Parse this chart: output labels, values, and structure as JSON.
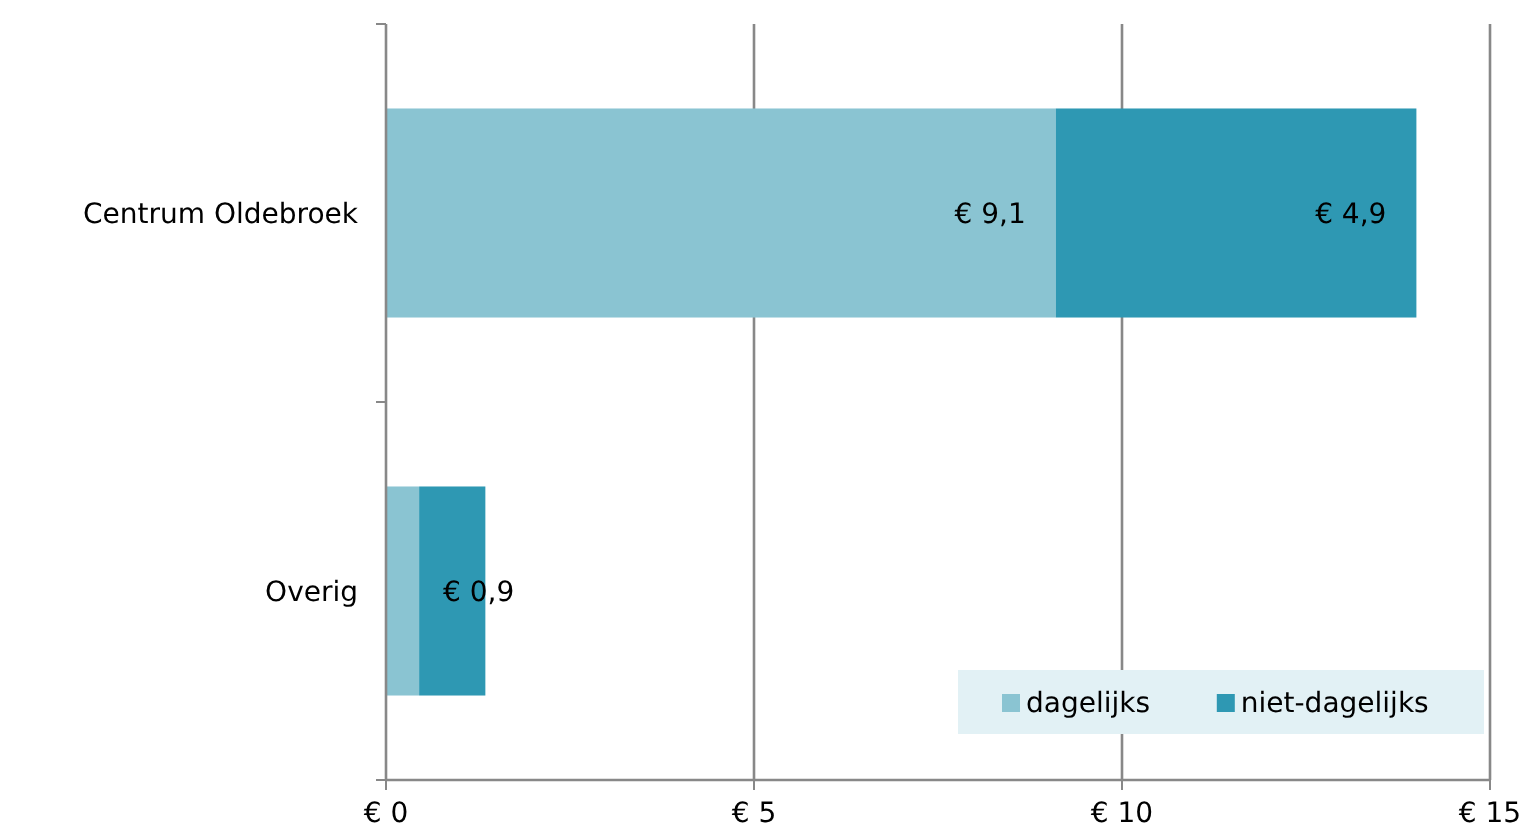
{
  "chart_data": {
    "type": "bar",
    "orientation": "horizontal",
    "stacked": true,
    "categories": [
      "Centrum Oldebroek",
      "Overig"
    ],
    "series": [
      {
        "name": "dagelijks",
        "color": "#8ac4d2",
        "values": [
          9.1,
          0.45
        ],
        "value_labels": [
          "€ 9,1",
          null
        ]
      },
      {
        "name": "niet-dagelijks",
        "color": "#2e98b3",
        "values": [
          4.9,
          0.9
        ],
        "value_labels": [
          "€ 4,9",
          "€ 0,9"
        ]
      }
    ],
    "xlim": [
      0,
      15
    ],
    "xticks": [
      {
        "value": 0,
        "label": "€ 0"
      },
      {
        "value": 5,
        "label": "€ 5"
      },
      {
        "value": 10,
        "label": "€ 10"
      },
      {
        "value": 15,
        "label": "€ 15"
      }
    ],
    "grid": "x",
    "legend": "bottom right"
  }
}
